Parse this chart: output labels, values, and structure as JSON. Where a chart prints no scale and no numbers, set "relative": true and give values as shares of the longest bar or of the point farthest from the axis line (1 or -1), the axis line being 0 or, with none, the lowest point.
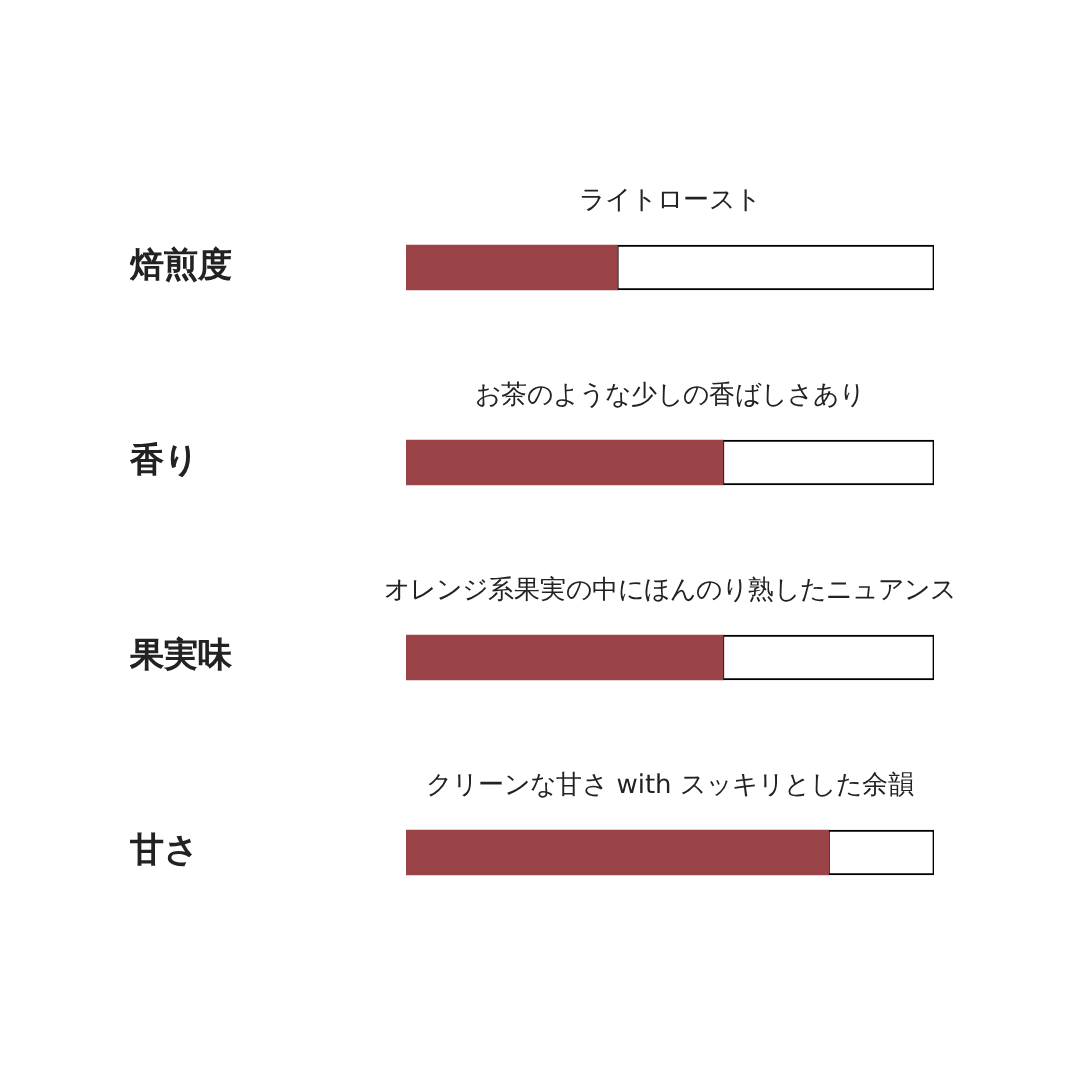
{
  "chart_data": {
    "type": "bar",
    "orientation": "horizontal",
    "stacked": true,
    "relative": true,
    "categories": [
      "焙煎度",
      "香り",
      "果実味",
      "甘さ"
    ],
    "series": [
      {
        "color": "#9a4448",
        "values": [
          0.4,
          0.6,
          0.6,
          0.8
        ]
      },
      {
        "color": "#ffffff",
        "values": [
          0.6,
          0.4,
          0.4,
          0.2
        ]
      }
    ],
    "tick_labels": "y",
    "annotations": [
      "ライトロースト",
      "お茶のような少しの香ばしさあり",
      "オレンジ系果実の中にほんのり熟したニュアンス",
      "クリーンな甘さ with スッキリとした余韻"
    ]
  }
}
